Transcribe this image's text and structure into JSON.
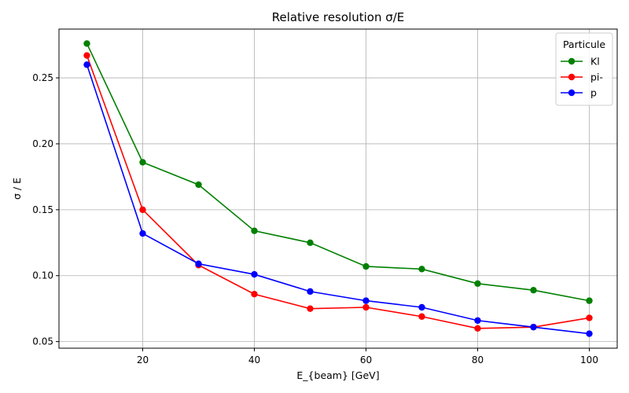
{
  "chart_data": {
    "type": "line",
    "title": "Relative resolution σ/E",
    "xlabel": "E_{beam} [GeV]",
    "ylabel": "σ / E",
    "xlim": [
      5,
      105
    ],
    "ylim": [
      0.045,
      0.287
    ],
    "x_ticks": [
      20,
      40,
      60,
      80,
      100
    ],
    "y_ticks": [
      0.05,
      0.1,
      0.15,
      0.2,
      0.25
    ],
    "x_tick_labels": [
      "20",
      "40",
      "60",
      "80",
      "100"
    ],
    "y_tick_labels": [
      "0.05",
      "0.10",
      "0.15",
      "0.20",
      "0.25"
    ],
    "grid": true,
    "legend": {
      "title": "Particule",
      "placement": "top-right"
    },
    "x": [
      10,
      20,
      30,
      40,
      50,
      60,
      70,
      80,
      90,
      100
    ],
    "series": [
      {
        "name": "Kl",
        "color": "#008000",
        "values": [
          0.276,
          0.186,
          0.169,
          0.134,
          0.125,
          0.107,
          0.105,
          0.094,
          0.089,
          0.081
        ]
      },
      {
        "name": "pi-",
        "color": "#ff0000",
        "values": [
          0.267,
          0.15,
          0.108,
          0.086,
          0.075,
          0.076,
          0.069,
          0.06,
          0.061,
          0.068
        ]
      },
      {
        "name": "p",
        "color": "#0000ff",
        "values": [
          0.26,
          0.132,
          0.109,
          0.101,
          0.088,
          0.081,
          0.076,
          0.066,
          0.061,
          0.056
        ]
      }
    ]
  }
}
